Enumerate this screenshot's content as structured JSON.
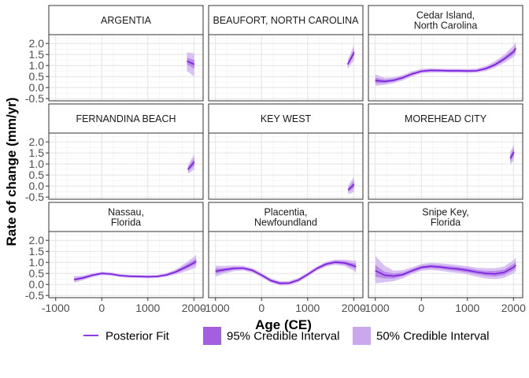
{
  "chart_data": {
    "type": "line",
    "xlabel": "Age (CE)",
    "ylabel": "Rate of change (mm/yr)",
    "xlim": [
      -1150,
      2200
    ],
    "ylim": [
      -0.6,
      2.4
    ],
    "xticks": [
      -1000,
      0,
      1000,
      2000
    ],
    "xtick_labels": [
      "-1000",
      "0",
      "1000",
      "2000"
    ],
    "yticks": [
      -0.5,
      0.0,
      0.5,
      1.0,
      1.5,
      2.0
    ],
    "ytick_labels": [
      "-0.5",
      "0.0",
      "0.5",
      "1.0",
      "1.5",
      "2.0"
    ],
    "grid": true,
    "legend_position": "bottom",
    "legend": [
      {
        "label": "Posterior Fit",
        "color": "#7b1fe0",
        "kind": "line"
      },
      {
        "label": "95% Credible Interval",
        "color": "#a35fe0",
        "kind": "fill"
      },
      {
        "label": "50% Credible Interval",
        "color": "#cba8ee",
        "kind": "fill"
      }
    ],
    "colors": {
      "fit": "#7b1fe0",
      "ci95": "#d9c2f3",
      "ci50": "#b98ae8"
    },
    "panels": [
      {
        "title": "ARGENTIA",
        "x": [
          1850,
          2010
        ],
        "fit": [
          1.2,
          1.05
        ],
        "ci95": [
          [
            0.75,
            1.6
          ],
          [
            0.5,
            1.55
          ]
        ],
        "ci50": [
          [
            1.05,
            1.35
          ],
          [
            0.85,
            1.25
          ]
        ]
      },
      {
        "title": "BEAUFORT, NORTH CAROLINA",
        "x": [
          1870,
          2010
        ],
        "fit": [
          1.05,
          1.6
        ],
        "ci95": [
          [
            0.85,
            1.25
          ],
          [
            1.25,
            1.95
          ]
        ],
        "ci50": [
          [
            0.97,
            1.13
          ],
          [
            1.45,
            1.75
          ]
        ]
      },
      {
        "title": "Cedar Island,\nNorth Carolina",
        "x": [
          -1000,
          -800,
          -600,
          -400,
          -200,
          0,
          200,
          400,
          600,
          800,
          1000,
          1200,
          1400,
          1600,
          1800,
          2000,
          2050
        ],
        "fit": [
          0.32,
          0.28,
          0.33,
          0.45,
          0.62,
          0.74,
          0.78,
          0.77,
          0.76,
          0.76,
          0.75,
          0.76,
          0.86,
          1.04,
          1.3,
          1.62,
          1.78
        ],
        "ci95": [
          [
            0.08,
            0.6
          ],
          [
            0.12,
            0.45
          ],
          [
            0.2,
            0.47
          ],
          [
            0.33,
            0.58
          ],
          [
            0.5,
            0.74
          ],
          [
            0.64,
            0.85
          ],
          [
            0.68,
            0.88
          ],
          [
            0.68,
            0.86
          ],
          [
            0.67,
            0.85
          ],
          [
            0.67,
            0.85
          ],
          [
            0.66,
            0.84
          ],
          [
            0.67,
            0.86
          ],
          [
            0.75,
            0.98
          ],
          [
            0.9,
            1.2
          ],
          [
            1.12,
            1.5
          ],
          [
            1.38,
            1.9
          ],
          [
            1.5,
            2.08
          ]
        ],
        "ci50": [
          [
            0.2,
            0.45
          ],
          [
            0.2,
            0.36
          ],
          [
            0.27,
            0.4
          ],
          [
            0.4,
            0.51
          ],
          [
            0.57,
            0.67
          ],
          [
            0.7,
            0.79
          ],
          [
            0.74,
            0.83
          ],
          [
            0.73,
            0.82
          ],
          [
            0.72,
            0.81
          ],
          [
            0.72,
            0.81
          ],
          [
            0.71,
            0.8
          ],
          [
            0.72,
            0.81
          ],
          [
            0.81,
            0.92
          ],
          [
            0.97,
            1.11
          ],
          [
            1.22,
            1.39
          ],
          [
            1.5,
            1.74
          ],
          [
            1.64,
            1.92
          ]
        ]
      },
      {
        "title": "FERNANDINA BEACH",
        "x": [
          1870,
          2010
        ],
        "fit": [
          0.75,
          1.1
        ],
        "ci95": [
          [
            0.55,
            0.95
          ],
          [
            0.75,
            1.45
          ]
        ],
        "ci50": [
          [
            0.66,
            0.84
          ],
          [
            0.93,
            1.27
          ]
        ]
      },
      {
        "title": "KEY WEST",
        "x": [
          1880,
          2010
        ],
        "fit": [
          -0.18,
          0.08
        ],
        "ci95": [
          [
            -0.38,
            0.02
          ],
          [
            -0.27,
            0.43
          ]
        ],
        "ci50": [
          [
            -0.27,
            -0.09
          ],
          [
            -0.08,
            0.24
          ]
        ]
      },
      {
        "title": "MOREHEAD CITY",
        "x": [
          1930,
          2010
        ],
        "fit": [
          1.25,
          1.55
        ],
        "ci95": [
          [
            0.95,
            1.55
          ],
          [
            1.2,
            1.9
          ]
        ],
        "ci50": [
          [
            1.1,
            1.4
          ],
          [
            1.38,
            1.72
          ]
        ]
      },
      {
        "title": "Nassau,\nFlorida",
        "x": [
          -600,
          -400,
          -200,
          0,
          200,
          400,
          600,
          800,
          1000,
          1200,
          1400,
          1600,
          1800,
          2000,
          2050
        ],
        "fit": [
          0.22,
          0.3,
          0.42,
          0.5,
          0.47,
          0.4,
          0.37,
          0.36,
          0.35,
          0.36,
          0.43,
          0.56,
          0.76,
          0.98,
          1.05
        ],
        "ci95": [
          [
            0.08,
            0.37
          ],
          [
            0.2,
            0.41
          ],
          [
            0.33,
            0.51
          ],
          [
            0.42,
            0.58
          ],
          [
            0.4,
            0.55
          ],
          [
            0.33,
            0.47
          ],
          [
            0.3,
            0.44
          ],
          [
            0.29,
            0.43
          ],
          [
            0.28,
            0.42
          ],
          [
            0.29,
            0.43
          ],
          [
            0.35,
            0.51
          ],
          [
            0.45,
            0.67
          ],
          [
            0.58,
            0.94
          ],
          [
            0.72,
            1.25
          ],
          [
            0.78,
            1.35
          ]
        ],
        "ci50": [
          [
            0.16,
            0.28
          ],
          [
            0.25,
            0.35
          ],
          [
            0.38,
            0.46
          ],
          [
            0.46,
            0.54
          ],
          [
            0.44,
            0.51
          ],
          [
            0.37,
            0.44
          ],
          [
            0.34,
            0.41
          ],
          [
            0.33,
            0.4
          ],
          [
            0.32,
            0.39
          ],
          [
            0.33,
            0.4
          ],
          [
            0.39,
            0.47
          ],
          [
            0.51,
            0.62
          ],
          [
            0.68,
            0.85
          ],
          [
            0.87,
            1.1
          ],
          [
            0.92,
            1.18
          ]
        ]
      },
      {
        "title": "Placentia,\nNewfoundland",
        "x": [
          -1000,
          -800,
          -600,
          -400,
          -200,
          0,
          200,
          400,
          600,
          800,
          1000,
          1200,
          1400,
          1600,
          1800,
          2000,
          2050
        ],
        "fit": [
          0.6,
          0.67,
          0.73,
          0.74,
          0.64,
          0.42,
          0.18,
          0.05,
          0.06,
          0.2,
          0.45,
          0.72,
          0.92,
          1.01,
          0.98,
          0.85,
          0.8
        ],
        "ci95": [
          [
            0.35,
            0.85
          ],
          [
            0.5,
            0.84
          ],
          [
            0.6,
            0.86
          ],
          [
            0.63,
            0.85
          ],
          [
            0.54,
            0.74
          ],
          [
            0.32,
            0.52
          ],
          [
            0.08,
            0.28
          ],
          [
            -0.05,
            0.15
          ],
          [
            -0.04,
            0.16
          ],
          [
            0.1,
            0.3
          ],
          [
            0.35,
            0.55
          ],
          [
            0.62,
            0.82
          ],
          [
            0.81,
            1.03
          ],
          [
            0.89,
            1.13
          ],
          [
            0.84,
            1.12
          ],
          [
            0.62,
            1.08
          ],
          [
            0.52,
            1.1
          ]
        ],
        "ci50": [
          [
            0.48,
            0.72
          ],
          [
            0.59,
            0.75
          ],
          [
            0.67,
            0.79
          ],
          [
            0.69,
            0.79
          ],
          [
            0.59,
            0.69
          ],
          [
            0.37,
            0.47
          ],
          [
            0.13,
            0.23
          ],
          [
            0.0,
            0.1
          ],
          [
            0.01,
            0.11
          ],
          [
            0.15,
            0.25
          ],
          [
            0.4,
            0.5
          ],
          [
            0.67,
            0.77
          ],
          [
            0.86,
            0.98
          ],
          [
            0.95,
            1.07
          ],
          [
            0.91,
            1.05
          ],
          [
            0.74,
            0.96
          ],
          [
            0.67,
            0.95
          ]
        ]
      },
      {
        "title": "Snipe Key,\nFlorida",
        "x": [
          -1000,
          -800,
          -600,
          -400,
          -200,
          0,
          200,
          400,
          600,
          800,
          1000,
          1200,
          1400,
          1600,
          1800,
          2000,
          2050
        ],
        "fit": [
          0.62,
          0.42,
          0.38,
          0.45,
          0.62,
          0.77,
          0.82,
          0.79,
          0.74,
          0.7,
          0.64,
          0.56,
          0.5,
          0.48,
          0.55,
          0.78,
          0.88
        ],
        "ci95": [
          [
            0.05,
            1.3
          ],
          [
            0.1,
            0.85
          ],
          [
            0.15,
            0.62
          ],
          [
            0.28,
            0.65
          ],
          [
            0.47,
            0.78
          ],
          [
            0.62,
            0.93
          ],
          [
            0.66,
            0.98
          ],
          [
            0.62,
            0.96
          ],
          [
            0.56,
            0.92
          ],
          [
            0.52,
            0.88
          ],
          [
            0.45,
            0.83
          ],
          [
            0.35,
            0.76
          ],
          [
            0.27,
            0.73
          ],
          [
            0.24,
            0.73
          ],
          [
            0.3,
            0.82
          ],
          [
            0.5,
            1.1
          ],
          [
            0.58,
            1.22
          ]
        ],
        "ci50": [
          [
            0.35,
            0.88
          ],
          [
            0.27,
            0.58
          ],
          [
            0.27,
            0.5
          ],
          [
            0.37,
            0.54
          ],
          [
            0.55,
            0.7
          ],
          [
            0.7,
            0.85
          ],
          [
            0.74,
            0.9
          ],
          [
            0.71,
            0.87
          ],
          [
            0.65,
            0.83
          ],
          [
            0.61,
            0.79
          ],
          [
            0.54,
            0.74
          ],
          [
            0.46,
            0.66
          ],
          [
            0.39,
            0.61
          ],
          [
            0.36,
            0.61
          ],
          [
            0.43,
            0.68
          ],
          [
            0.64,
            0.93
          ],
          [
            0.73,
            1.04
          ]
        ]
      }
    ]
  }
}
